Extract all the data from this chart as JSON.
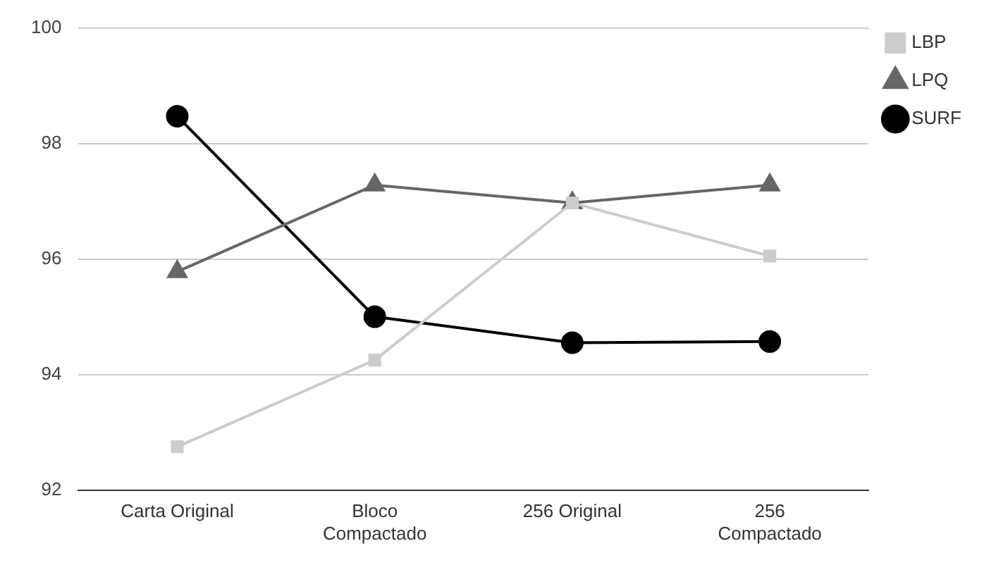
{
  "chart_data": {
    "type": "line",
    "categories": [
      "Carta Original",
      "Bloco\nCompactado",
      "256 Original",
      "256\nCompactado"
    ],
    "series": [
      {
        "name": "LBP",
        "color": "#cccccc",
        "marker": "square",
        "values": [
          92.75,
          94.25,
          96.97,
          96.05
        ]
      },
      {
        "name": "LPQ",
        "color": "#666666",
        "marker": "triangle",
        "values": [
          95.78,
          97.28,
          96.97,
          97.28
        ]
      },
      {
        "name": "SURF",
        "color": "#000000",
        "marker": "circle",
        "values": [
          98.47,
          95.0,
          94.55,
          94.57
        ]
      }
    ],
    "ylim": [
      92,
      100
    ],
    "yticks": [
      92,
      94,
      96,
      98,
      100
    ],
    "grid": "y",
    "legend": "top right",
    "line_style": "solid"
  }
}
